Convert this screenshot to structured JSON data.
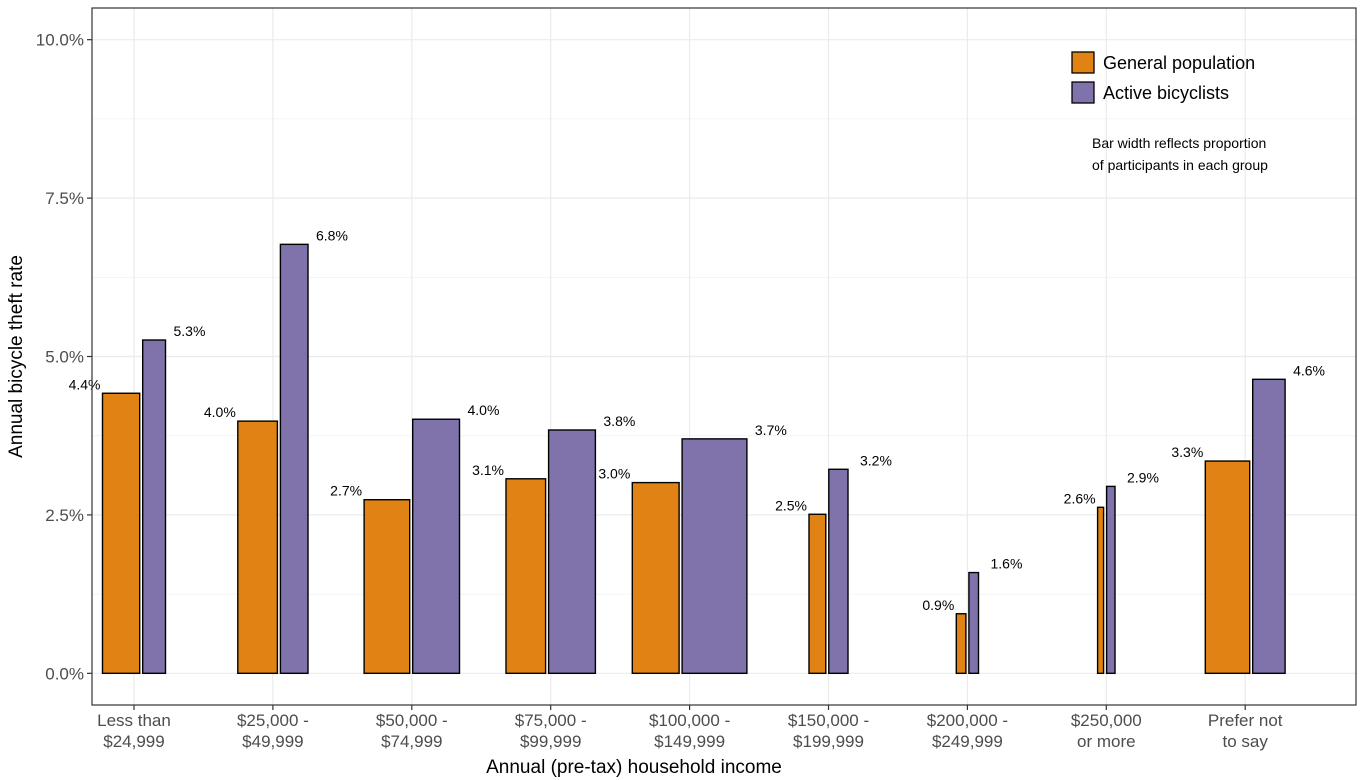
{
  "chart_data": {
    "type": "bar",
    "title": "",
    "xlabel": "Annual (pre-tax) household income",
    "ylabel": "Annual bicycle theft rate",
    "ylim": [
      -0.5,
      10.5
    ],
    "yticks": [
      0,
      2.5,
      5,
      7.5,
      10
    ],
    "ytick_labels": [
      "0.0%",
      "2.5%",
      "5.0%",
      "7.5%",
      "10.0%"
    ],
    "grid": true,
    "legend_position": "top-right",
    "categories": [
      [
        "Less than",
        "$24,999"
      ],
      [
        "$25,000 -",
        "$49,999"
      ],
      [
        "$50,000 -",
        "$74,999"
      ],
      [
        "$75,000 -",
        "$99,999"
      ],
      [
        "$100,000 -",
        "$149,999"
      ],
      [
        "$150,000 -",
        "$199,999"
      ],
      [
        "$200,000 -",
        "$249,999"
      ],
      [
        "$250,000",
        "or more"
      ],
      [
        "Prefer not",
        "to say"
      ]
    ],
    "series": [
      {
        "name": "General population",
        "color": "#E08214",
        "values": [
          4.4,
          4.0,
          2.7,
          3.1,
          3.0,
          2.5,
          0.9,
          2.6,
          3.3
        ],
        "heights": [
          4.42,
          3.98,
          2.74,
          3.07,
          3.01,
          2.51,
          0.94,
          2.62,
          3.35
        ],
        "labels": [
          "4.4%",
          "4.0%",
          "2.7%",
          "3.1%",
          "3.0%",
          "2.5%",
          "0.9%",
          "2.6%",
          "3.3%"
        ],
        "proportion": [
          0.31,
          0.33,
          0.38,
          0.33,
          0.39,
          0.14,
          0.08,
          0.05,
          0.37
        ]
      },
      {
        "name": "Active bicyclists",
        "color": "#8073AC",
        "values": [
          5.3,
          6.8,
          4.0,
          3.8,
          3.7,
          3.2,
          1.6,
          2.9,
          4.6
        ],
        "heights": [
          5.26,
          6.77,
          4.01,
          3.84,
          3.7,
          3.22,
          1.59,
          2.95,
          4.64
        ],
        "labels": [
          "5.3%",
          "6.8%",
          "4.0%",
          "3.8%",
          "3.7%",
          "3.2%",
          "1.6%",
          "2.9%",
          "4.6%"
        ],
        "proportion": [
          0.19,
          0.23,
          0.39,
          0.39,
          0.54,
          0.16,
          0.08,
          0.07,
          0.27
        ]
      }
    ],
    "note": [
      "Bar width reflects proportion",
      "of participants in each group"
    ]
  }
}
